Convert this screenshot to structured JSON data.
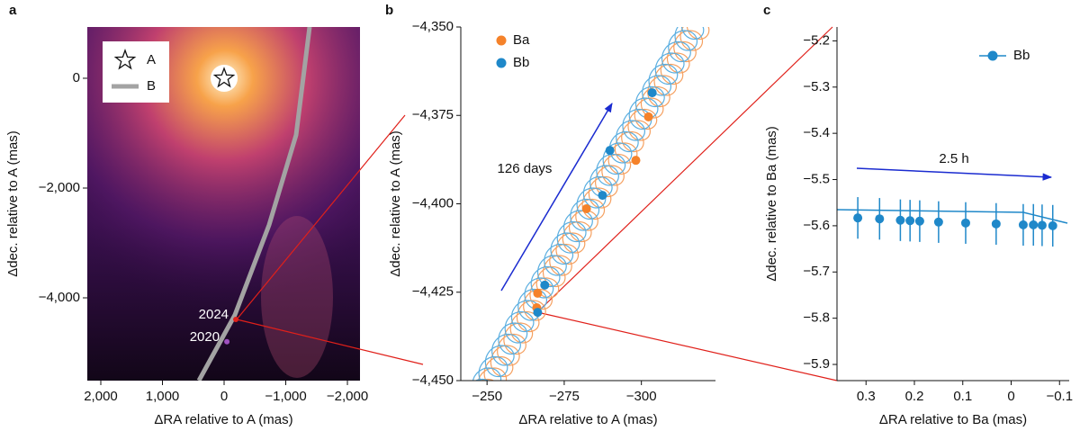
{
  "chart_data": [
    {
      "type": "image",
      "panel_label": "a",
      "x_label": "ΔRA relative to A (mas)",
      "y_label": "Δdec. relative to A (mas)",
      "xlim": [
        2219,
        -2204
      ],
      "ylim": [
        -5508,
        934
      ],
      "xticks": [
        {
          "value": 2000,
          "label": "2,000"
        },
        {
          "value": 1000,
          "label": "1,000"
        },
        0,
        {
          "value": -1000,
          "label": "−1,000"
        },
        {
          "value": -2000,
          "label": "−2,000"
        }
      ],
      "yticks": [
        0,
        {
          "value": -2000,
          "label": "−2,000"
        },
        {
          "value": -4000,
          "label": "−4,000"
        }
      ],
      "star": {
        "name": "A",
        "x": 0,
        "y": 0
      },
      "series": [
        {
          "name": "B",
          "color": "#a3a3a3",
          "x": [
            409,
            -175,
            -730,
            -1168,
            -1387
          ],
          "y": [
            -5508,
            -4311,
            -2672,
            -1033,
            934
          ]
        }
      ],
      "annotations": [
        {
          "text": "2024",
          "x": -190,
          "y": -4393
        },
        {
          "text": "2020",
          "x": -45,
          "y": -4800
        }
      ]
    },
    {
      "type": "scatter",
      "panel_label": "b",
      "x_label": "ΔRA relative to A (mas)",
      "y_label": "Δdec. relative to A (mas)",
      "xlim": [
        -241.5,
        -324
      ],
      "ylim": [
        -4450,
        -4350
      ],
      "xticks": [
        {
          "value": -250,
          "label": "−250"
        },
        {
          "value": -275,
          "label": "−275"
        },
        {
          "value": -300,
          "label": "−300"
        }
      ],
      "yticks": [
        {
          "value": -4350,
          "label": "−4,350"
        },
        {
          "value": -4375,
          "label": "−4,375"
        },
        {
          "value": -4400,
          "label": "−4,400"
        },
        {
          "value": -4425,
          "label": "−4,425"
        },
        {
          "value": -4450,
          "label": "−4,450"
        }
      ],
      "series": [
        {
          "name": "Ba",
          "color": "#f5822a",
          "x": [
            -266.4,
            -266.1,
            -282.2,
            -298.2,
            -302.3
          ],
          "y": [
            -4425.3,
            -4429.4,
            -4401.4,
            -4387.7,
            -4375.4
          ]
        },
        {
          "name": "Bb",
          "color": "#1f88c9",
          "x": [
            -268.7,
            -266.4,
            -287.4,
            -289.8,
            -303.5
          ],
          "y": [
            -4423.0,
            -4430.7,
            -4397.6,
            -4384.9,
            -4368.6
          ]
        }
      ],
      "annotation": "126 days"
    },
    {
      "type": "errorbar",
      "panel_label": "c",
      "x_label": "ΔRA relative to Ba (mas)",
      "y_label": "Δdec. relative to Ba (mas)",
      "xlim": [
        0.36,
        -0.12
      ],
      "ylim": [
        -5.935,
        -5.17
      ],
      "xticks": [
        0.3,
        0.2,
        0.1,
        0,
        {
          "value": -0.1,
          "label": "−0.1"
        }
      ],
      "yticks": [
        {
          "value": -5.2,
          "label": "−5.2"
        },
        {
          "value": -5.3,
          "label": "−5.3"
        },
        {
          "value": -5.4,
          "label": "−5.4"
        },
        {
          "value": -5.5,
          "label": "−5.5"
        },
        {
          "value": -5.6,
          "label": "−5.6"
        },
        {
          "value": -5.7,
          "label": "−5.7"
        },
        {
          "value": -5.8,
          "label": "−5.8"
        },
        {
          "value": -5.9,
          "label": "−5.9"
        }
      ],
      "series": [
        {
          "name": "Bb",
          "color": "#1f88c9",
          "x": [
            0.317,
            0.272,
            0.229,
            0.209,
            0.189,
            0.15,
            0.094,
            0.031,
            -0.025,
            -0.046,
            -0.064,
            -0.086
          ],
          "y": [
            -5.583,
            -5.585,
            -5.588,
            -5.589,
            -5.59,
            -5.592,
            -5.594,
            -5.596,
            -5.598,
            -5.598,
            -5.599,
            -5.6
          ],
          "yerr": [
            0.045,
            0.045,
            0.045,
            0.045,
            0.045,
            0.045,
            0.045,
            0.045,
            0.045,
            0.045,
            0.045,
            0.045
          ]
        }
      ],
      "annotation": "2.5 h"
    }
  ]
}
